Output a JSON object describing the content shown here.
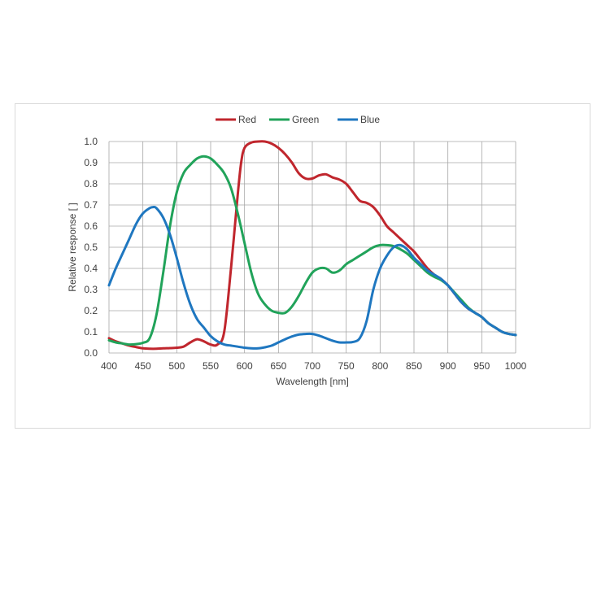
{
  "chart_data": {
    "type": "line",
    "title": "",
    "xlabel": "Wavelength [nm]",
    "ylabel": "Relative response [ ]",
    "xlim": [
      400,
      1000
    ],
    "ylim": [
      0,
      1.0
    ],
    "xticks": [
      "400",
      "450",
      "500",
      "550",
      "600",
      "650",
      "700",
      "750",
      "800",
      "850",
      "900",
      "950",
      "1000"
    ],
    "yticks": [
      "0.0",
      "0.1",
      "0.2",
      "0.3",
      "0.4",
      "0.5",
      "0.6",
      "0.7",
      "0.8",
      "0.9",
      "1.0"
    ],
    "grid": true,
    "legend_position": "top-center",
    "series": [
      {
        "name": "Red",
        "color": "#c0262d",
        "points": [
          [
            400,
            0.07
          ],
          [
            410,
            0.055
          ],
          [
            420,
            0.045
          ],
          [
            430,
            0.035
          ],
          [
            440,
            0.028
          ],
          [
            450,
            0.022
          ],
          [
            460,
            0.02
          ],
          [
            470,
            0.02
          ],
          [
            480,
            0.022
          ],
          [
            490,
            0.023
          ],
          [
            500,
            0.025
          ],
          [
            510,
            0.03
          ],
          [
            520,
            0.05
          ],
          [
            530,
            0.065
          ],
          [
            540,
            0.055
          ],
          [
            550,
            0.04
          ],
          [
            560,
            0.04
          ],
          [
            570,
            0.1
          ],
          [
            580,
            0.4
          ],
          [
            590,
            0.75
          ],
          [
            595,
            0.9
          ],
          [
            600,
            0.97
          ],
          [
            610,
            0.995
          ],
          [
            620,
            1.0
          ],
          [
            630,
            1.0
          ],
          [
            640,
            0.99
          ],
          [
            650,
            0.97
          ],
          [
            660,
            0.94
          ],
          [
            670,
            0.9
          ],
          [
            680,
            0.85
          ],
          [
            690,
            0.825
          ],
          [
            700,
            0.825
          ],
          [
            710,
            0.84
          ],
          [
            720,
            0.845
          ],
          [
            730,
            0.83
          ],
          [
            740,
            0.82
          ],
          [
            750,
            0.8
          ],
          [
            760,
            0.76
          ],
          [
            770,
            0.72
          ],
          [
            780,
            0.71
          ],
          [
            790,
            0.69
          ],
          [
            800,
            0.65
          ],
          [
            810,
            0.6
          ],
          [
            820,
            0.57
          ],
          [
            830,
            0.54
          ],
          [
            840,
            0.51
          ],
          [
            850,
            0.48
          ],
          [
            860,
            0.44
          ],
          [
            870,
            0.4
          ],
          [
            880,
            0.37
          ],
          [
            890,
            0.35
          ],
          [
            900,
            0.32
          ],
          [
            910,
            0.28
          ],
          [
            920,
            0.24
          ],
          [
            930,
            0.21
          ],
          [
            940,
            0.19
          ],
          [
            950,
            0.17
          ],
          [
            960,
            0.14
          ],
          [
            970,
            0.12
          ],
          [
            980,
            0.1
          ],
          [
            990,
            0.09
          ],
          [
            1000,
            0.085
          ]
        ]
      },
      {
        "name": "Green",
        "color": "#21a35a",
        "points": [
          [
            400,
            0.06
          ],
          [
            410,
            0.05
          ],
          [
            420,
            0.045
          ],
          [
            430,
            0.04
          ],
          [
            440,
            0.042
          ],
          [
            450,
            0.048
          ],
          [
            460,
            0.07
          ],
          [
            470,
            0.18
          ],
          [
            480,
            0.38
          ],
          [
            490,
            0.6
          ],
          [
            500,
            0.76
          ],
          [
            510,
            0.85
          ],
          [
            520,
            0.89
          ],
          [
            530,
            0.92
          ],
          [
            540,
            0.93
          ],
          [
            550,
            0.92
          ],
          [
            560,
            0.89
          ],
          [
            570,
            0.85
          ],
          [
            580,
            0.78
          ],
          [
            590,
            0.66
          ],
          [
            600,
            0.52
          ],
          [
            610,
            0.38
          ],
          [
            620,
            0.28
          ],
          [
            630,
            0.23
          ],
          [
            640,
            0.2
          ],
          [
            650,
            0.19
          ],
          [
            660,
            0.19
          ],
          [
            670,
            0.22
          ],
          [
            680,
            0.27
          ],
          [
            690,
            0.33
          ],
          [
            700,
            0.38
          ],
          [
            710,
            0.4
          ],
          [
            720,
            0.4
          ],
          [
            730,
            0.38
          ],
          [
            740,
            0.39
          ],
          [
            750,
            0.42
          ],
          [
            760,
            0.44
          ],
          [
            770,
            0.46
          ],
          [
            780,
            0.48
          ],
          [
            790,
            0.5
          ],
          [
            800,
            0.51
          ],
          [
            810,
            0.51
          ],
          [
            820,
            0.505
          ],
          [
            830,
            0.49
          ],
          [
            840,
            0.47
          ],
          [
            850,
            0.44
          ],
          [
            860,
            0.41
          ],
          [
            870,
            0.38
          ],
          [
            880,
            0.36
          ],
          [
            890,
            0.345
          ],
          [
            900,
            0.32
          ],
          [
            910,
            0.285
          ],
          [
            920,
            0.25
          ],
          [
            930,
            0.215
          ],
          [
            940,
            0.19
          ],
          [
            950,
            0.17
          ],
          [
            960,
            0.14
          ],
          [
            970,
            0.12
          ],
          [
            980,
            0.1
          ],
          [
            990,
            0.09
          ],
          [
            1000,
            0.085
          ]
        ]
      },
      {
        "name": "Blue",
        "color": "#1f77c0",
        "points": [
          [
            400,
            0.32
          ],
          [
            410,
            0.4
          ],
          [
            420,
            0.47
          ],
          [
            430,
            0.54
          ],
          [
            440,
            0.61
          ],
          [
            450,
            0.66
          ],
          [
            460,
            0.685
          ],
          [
            465,
            0.69
          ],
          [
            470,
            0.685
          ],
          [
            480,
            0.64
          ],
          [
            490,
            0.56
          ],
          [
            500,
            0.45
          ],
          [
            510,
            0.33
          ],
          [
            520,
            0.23
          ],
          [
            530,
            0.16
          ],
          [
            540,
            0.12
          ],
          [
            550,
            0.08
          ],
          [
            560,
            0.055
          ],
          [
            570,
            0.04
          ],
          [
            580,
            0.035
          ],
          [
            590,
            0.03
          ],
          [
            600,
            0.025
          ],
          [
            610,
            0.022
          ],
          [
            620,
            0.022
          ],
          [
            630,
            0.027
          ],
          [
            640,
            0.035
          ],
          [
            650,
            0.05
          ],
          [
            660,
            0.065
          ],
          [
            670,
            0.078
          ],
          [
            680,
            0.087
          ],
          [
            690,
            0.09
          ],
          [
            700,
            0.09
          ],
          [
            710,
            0.082
          ],
          [
            720,
            0.07
          ],
          [
            730,
            0.058
          ],
          [
            740,
            0.05
          ],
          [
            750,
            0.05
          ],
          [
            760,
            0.052
          ],
          [
            770,
            0.07
          ],
          [
            780,
            0.15
          ],
          [
            790,
            0.3
          ],
          [
            800,
            0.4
          ],
          [
            810,
            0.46
          ],
          [
            820,
            0.5
          ],
          [
            830,
            0.51
          ],
          [
            840,
            0.49
          ],
          [
            850,
            0.45
          ],
          [
            860,
            0.42
          ],
          [
            870,
            0.39
          ],
          [
            880,
            0.37
          ],
          [
            890,
            0.35
          ],
          [
            900,
            0.32
          ],
          [
            910,
            0.28
          ],
          [
            920,
            0.24
          ],
          [
            930,
            0.21
          ],
          [
            940,
            0.19
          ],
          [
            950,
            0.17
          ],
          [
            960,
            0.14
          ],
          [
            970,
            0.12
          ],
          [
            980,
            0.1
          ],
          [
            990,
            0.09
          ],
          [
            1000,
            0.085
          ]
        ]
      }
    ]
  }
}
